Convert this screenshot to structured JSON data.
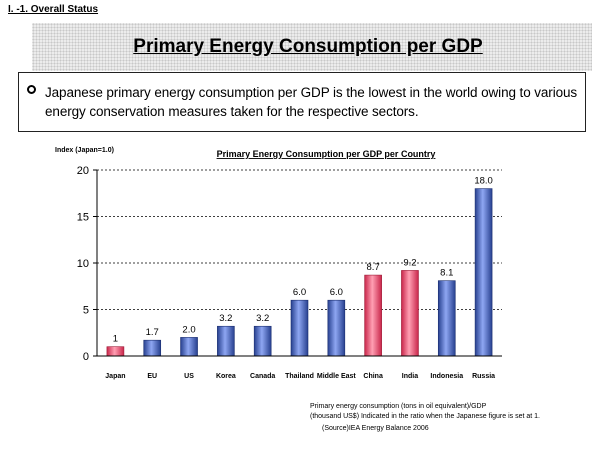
{
  "section_label": "I. -1. Overall Status",
  "page_title": "Primary Energy Consumption per GDP",
  "summary": "Japanese primary energy consumption per GDP is the lowest in the world owing to various energy conservation measures taken for the respective sectors.",
  "chart_data": {
    "type": "bar",
    "title": "Primary Energy Consumption per GDP per Country",
    "ylabel": "Index (Japan=1.0)",
    "xlabel": "",
    "ylim": [
      0,
      20
    ],
    "yticks": [
      0,
      5,
      10,
      15,
      20
    ],
    "grid": true,
    "categories": [
      "Japan",
      "EU",
      "US",
      "Korea",
      "Canada",
      "Thailand",
      "Middle East",
      "China",
      "India",
      "Indonesia",
      "Russia"
    ],
    "values": [
      1,
      1.7,
      2.0,
      3.2,
      3.2,
      6.0,
      6.0,
      8.7,
      9.2,
      8.1,
      18.0
    ],
    "value_labels": [
      "1",
      "1.7",
      "2.0",
      "3.2",
      "3.2",
      "6.0",
      "6.0",
      "8.7",
      "9.2",
      "8.1",
      "18.0"
    ],
    "bar_colors": [
      "#ee4d6d",
      "#4a6ad8",
      "#4a6ad8",
      "#4a6ad8",
      "#4a6ad8",
      "#4a6ad8",
      "#4a6ad8",
      "#ee4d6d",
      "#ee4d6d",
      "#4a6ad8",
      "#4a6ad8"
    ]
  },
  "notes": {
    "line1": "Primary energy consumption (tons in oil equivalent)/GDP",
    "line2": "(thousand US$) Indicated in the ratio when the Japanese figure is set at 1.",
    "source": "(Source)IEA Energy Balance 2006"
  }
}
